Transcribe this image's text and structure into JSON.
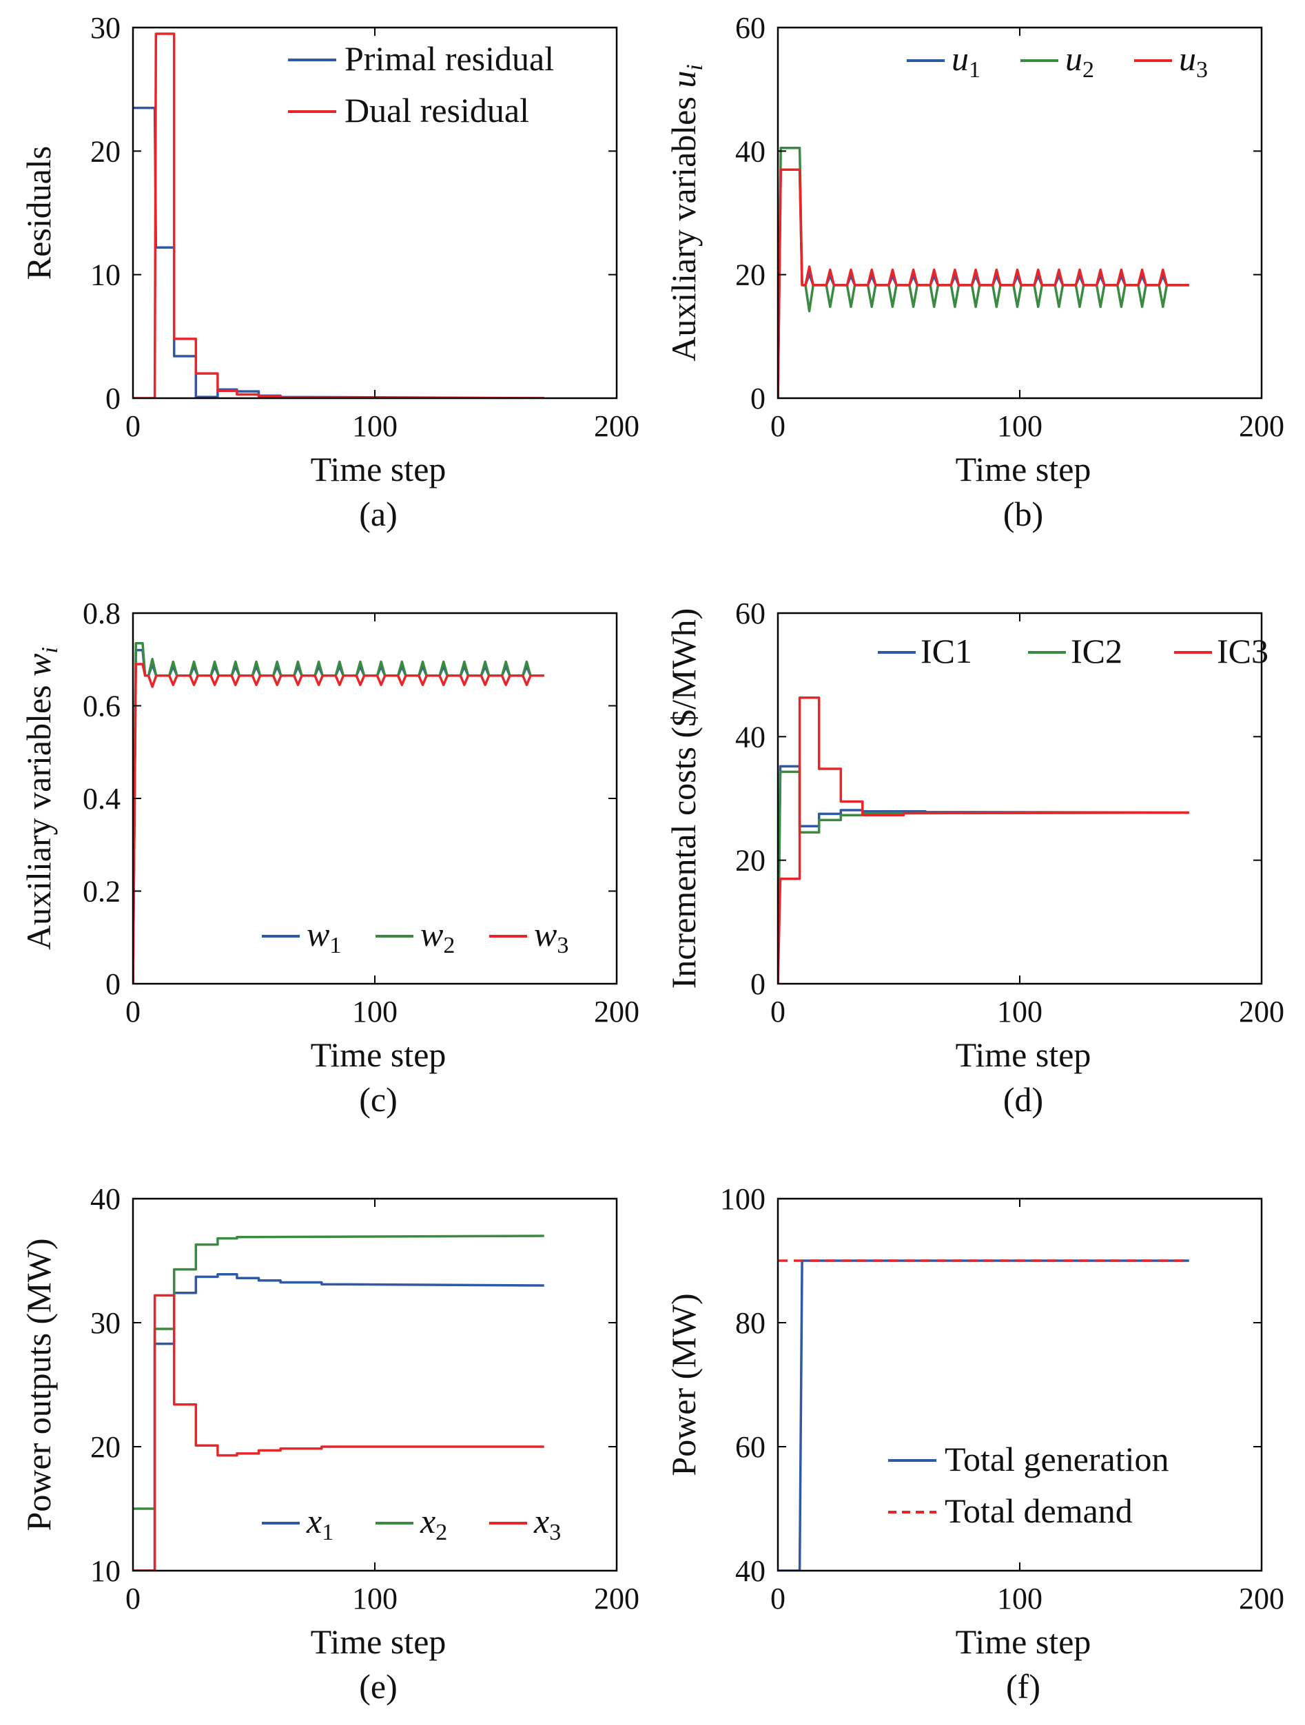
{
  "colors": {
    "blue": "#2f58a6",
    "green": "#3a8a41",
    "red": "#e8262a"
  },
  "chart_data": [
    {
      "id": "a",
      "type": "line",
      "caption": "(a)",
      "xlabel": "Time step",
      "ylabel": "Residuals",
      "xlim": [
        0,
        200
      ],
      "ylim": [
        0,
        30
      ],
      "xticks": [
        0,
        100,
        200
      ],
      "yticks": [
        0,
        10,
        20,
        30
      ],
      "legend": {
        "placement": "top-right"
      },
      "series": [
        {
          "name": "Primal residual",
          "color": "#2f58a6",
          "points": [
            [
              0,
              23.5
            ],
            [
              9,
              23.5
            ],
            [
              9.5,
              12.2
            ],
            [
              17,
              12.2
            ],
            [
              17,
              3.4
            ],
            [
              26,
              3.4
            ],
            [
              26,
              0.1
            ],
            [
              35,
              0.1
            ],
            [
              35,
              0.7
            ],
            [
              43,
              0.7
            ],
            [
              43,
              0.55
            ],
            [
              52,
              0.55
            ],
            [
              52,
              0.2
            ],
            [
              61,
              0.2
            ],
            [
              61,
              0.1
            ],
            [
              170,
              0.0
            ]
          ]
        },
        {
          "name": "Dual residual",
          "color": "#e8262a",
          "points": [
            [
              0,
              0
            ],
            [
              9,
              0
            ],
            [
              9.5,
              29.5
            ],
            [
              17,
              29.5
            ],
            [
              17,
              4.8
            ],
            [
              26,
              4.8
            ],
            [
              26,
              2.0
            ],
            [
              35,
              2.0
            ],
            [
              35,
              0.6
            ],
            [
              43,
              0.6
            ],
            [
              43,
              0.3
            ],
            [
              52,
              0.3
            ],
            [
              52,
              0.15
            ],
            [
              61,
              0.15
            ],
            [
              61,
              0.05
            ],
            [
              170,
              0.0
            ]
          ]
        }
      ]
    },
    {
      "id": "b",
      "type": "line",
      "caption": "(b)",
      "xlabel": "Time step",
      "ylabel": "Auxiliary variables ",
      "ylabel_symbol": "u",
      "ylabel_subscript": "i",
      "xlim": [
        0,
        200
      ],
      "ylim": [
        0,
        60
      ],
      "xticks": [
        0,
        100,
        200
      ],
      "yticks": [
        0,
        20,
        40,
        60
      ],
      "legend": {
        "placement": "top-right",
        "symbol": "u"
      },
      "series": [
        {
          "name": "1",
          "color": "#2f58a6",
          "start": 0,
          "peak": 37,
          "peak_end": 9,
          "steady": 18.3,
          "osc": 1.5,
          "period": 8.6,
          "end": 170
        },
        {
          "name": "2",
          "color": "#3a8a41",
          "start": 0,
          "peak": 40.5,
          "peak_end": 9,
          "steady": 18.3,
          "osc": -3.5,
          "period": 8.6,
          "end": 170
        },
        {
          "name": "3",
          "color": "#e8262a",
          "start": 0,
          "peak": 37,
          "peak_end": 9,
          "steady": 18.3,
          "osc": 2.5,
          "period": 8.6,
          "end": 170
        }
      ]
    },
    {
      "id": "c",
      "type": "line",
      "caption": "(c)",
      "xlabel": "Time step",
      "ylabel": "Auxiliary variables ",
      "ylabel_symbol": "w",
      "ylabel_subscript": "i",
      "xlim": [
        0,
        200
      ],
      "ylim": [
        0,
        0.8
      ],
      "xticks": [
        0,
        100,
        200
      ],
      "yticks": [
        0,
        0.2,
        0.4,
        0.6,
        0.8
      ],
      "legend": {
        "placement": "bottom-right",
        "symbol": "w"
      },
      "series": [
        {
          "name": "1",
          "color": "#2f58a6",
          "start": 0,
          "peak": 0.72,
          "peak_end": 4,
          "steady": 0.665,
          "osc": 0.02,
          "period": 8.6,
          "end": 170
        },
        {
          "name": "2",
          "color": "#3a8a41",
          "start": 0,
          "peak": 0.735,
          "peak_end": 4,
          "steady": 0.665,
          "osc": 0.03,
          "period": 8.6,
          "end": 170
        },
        {
          "name": "3",
          "color": "#e8262a",
          "start": 0,
          "peak": 0.69,
          "peak_end": 4,
          "steady": 0.665,
          "osc": -0.02,
          "period": 8.6,
          "end": 170
        }
      ]
    },
    {
      "id": "d",
      "type": "line",
      "caption": "(d)",
      "xlabel": "Time step",
      "ylabel": "Incremental costs ($/MWh)",
      "xlim": [
        0,
        200
      ],
      "ylim": [
        0,
        60
      ],
      "xticks": [
        0,
        100,
        200
      ],
      "yticks": [
        0,
        20,
        40,
        60
      ],
      "legend": {
        "placement": "top-right"
      },
      "series": [
        {
          "name": "IC1",
          "color": "#2f58a6",
          "points": [
            [
              0,
              0
            ],
            [
              1,
              35.2
            ],
            [
              9,
              35.2
            ],
            [
              9,
              25.5
            ],
            [
              17,
              25.5
            ],
            [
              17,
              27.5
            ],
            [
              26,
              27.5
            ],
            [
              26,
              28.1
            ],
            [
              35,
              28.1
            ],
            [
              35,
              27.9
            ],
            [
              61,
              27.9
            ],
            [
              61,
              27.8
            ],
            [
              170,
              27.7
            ]
          ]
        },
        {
          "name": "IC2",
          "color": "#3a8a41",
          "points": [
            [
              0,
              0
            ],
            [
              1,
              34.3
            ],
            [
              9,
              34.3
            ],
            [
              9,
              24.5
            ],
            [
              17,
              24.5
            ],
            [
              17,
              26.5
            ],
            [
              26,
              26.5
            ],
            [
              26,
              27.3
            ],
            [
              35,
              27.3
            ],
            [
              35,
              27.6
            ],
            [
              170,
              27.7
            ]
          ]
        },
        {
          "name": "IC3",
          "color": "#e8262a",
          "points": [
            [
              0,
              0
            ],
            [
              1,
              17
            ],
            [
              9,
              17
            ],
            [
              9,
              46.3
            ],
            [
              17,
              46.3
            ],
            [
              17,
              34.8
            ],
            [
              26,
              34.8
            ],
            [
              26,
              29.5
            ],
            [
              35,
              29.5
            ],
            [
              35,
              27.3
            ],
            [
              52,
              27.3
            ],
            [
              52,
              27.6
            ],
            [
              170,
              27.7
            ]
          ]
        }
      ]
    },
    {
      "id": "e",
      "type": "line",
      "caption": "(e)",
      "xlabel": "Time step",
      "ylabel": "Power outputs (MW)",
      "xlim": [
        0,
        200
      ],
      "ylim": [
        10,
        40
      ],
      "xticks": [
        0,
        100,
        200
      ],
      "yticks": [
        10,
        20,
        30,
        40
      ],
      "legend": {
        "placement": "bottom-right",
        "symbol": "x"
      },
      "series": [
        {
          "name": "1",
          "color": "#2f58a6",
          "points": [
            [
              0,
              10
            ],
            [
              9,
              10
            ],
            [
              9,
              28.3
            ],
            [
              17,
              28.3
            ],
            [
              17,
              32.4
            ],
            [
              26,
              32.4
            ],
            [
              26,
              33.7
            ],
            [
              35,
              33.7
            ],
            [
              35,
              33.9
            ],
            [
              43,
              33.9
            ],
            [
              43,
              33.6
            ],
            [
              52,
              33.6
            ],
            [
              52,
              33.4
            ],
            [
              61,
              33.4
            ],
            [
              61,
              33.25
            ],
            [
              78,
              33.25
            ],
            [
              78,
              33.1
            ],
            [
              170,
              33.0
            ]
          ]
        },
        {
          "name": "2",
          "color": "#3a8a41",
          "points": [
            [
              0,
              15
            ],
            [
              9,
              15
            ],
            [
              9,
              29.5
            ],
            [
              17,
              29.5
            ],
            [
              17,
              34.3
            ],
            [
              26,
              34.3
            ],
            [
              26,
              36.3
            ],
            [
              35,
              36.3
            ],
            [
              35,
              36.8
            ],
            [
              43,
              36.8
            ],
            [
              43,
              36.9
            ],
            [
              170,
              37.0
            ]
          ]
        },
        {
          "name": "3",
          "color": "#e8262a",
          "points": [
            [
              0,
              10
            ],
            [
              9,
              10
            ],
            [
              9,
              32.2
            ],
            [
              17,
              32.2
            ],
            [
              17,
              23.4
            ],
            [
              26,
              23.4
            ],
            [
              26,
              20.1
            ],
            [
              35,
              20.1
            ],
            [
              35,
              19.3
            ],
            [
              43,
              19.3
            ],
            [
              43,
              19.45
            ],
            [
              52,
              19.45
            ],
            [
              52,
              19.7
            ],
            [
              61,
              19.7
            ],
            [
              61,
              19.85
            ],
            [
              78,
              19.85
            ],
            [
              78,
              20.0
            ],
            [
              170,
              20.0
            ]
          ]
        }
      ]
    },
    {
      "id": "f",
      "type": "line",
      "caption": "(f)",
      "xlabel": "Time step",
      "ylabel": "Power (MW)",
      "xlim": [
        0,
        200
      ],
      "ylim": [
        40,
        100
      ],
      "xticks": [
        0,
        100,
        200
      ],
      "yticks": [
        40,
        60,
        80,
        100
      ],
      "legend": {
        "placement": "bottom-right"
      },
      "series": [
        {
          "name": "Total generation",
          "color": "#2f58a6",
          "points": [
            [
              0,
              40
            ],
            [
              9,
              40
            ],
            [
              10,
              90
            ],
            [
              170,
              90
            ]
          ]
        },
        {
          "name": "Total demand",
          "color": "#e8262a",
          "dashed": true,
          "points": [
            [
              0,
              90
            ],
            [
              170,
              90
            ]
          ]
        }
      ]
    }
  ]
}
